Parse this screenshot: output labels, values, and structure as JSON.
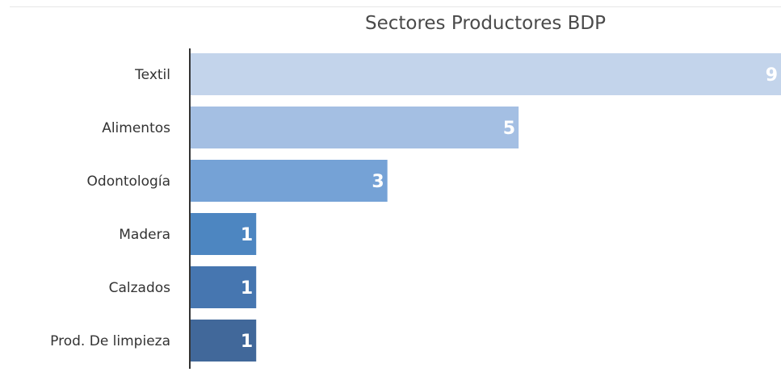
{
  "chart_data": {
    "type": "bar",
    "orientation": "horizontal",
    "title": "Sectores Productores BDP",
    "categories": [
      "Textil",
      "Alimentos",
      "Odontología",
      "Madera",
      "Calzados",
      "Prod. De limpieza"
    ],
    "values": [
      9,
      5,
      3,
      1,
      1,
      1
    ],
    "bar_colors": [
      "#c3d4eb",
      "#a4bfe3",
      "#75a2d6",
      "#4d86c1",
      "#4676b0",
      "#41689a"
    ],
    "xlim": [
      0,
      9
    ],
    "grid": false,
    "legend": "none"
  }
}
